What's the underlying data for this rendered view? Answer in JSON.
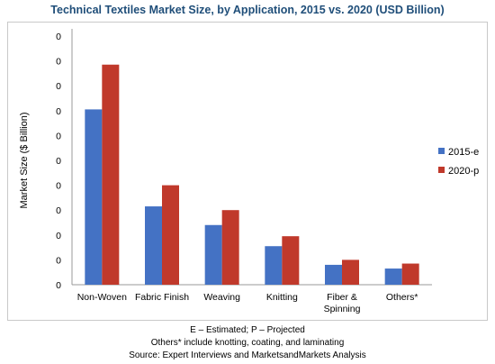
{
  "chart_data": {
    "type": "bar",
    "title": "Technical Textiles Market Size, by Application, 2015 vs. 2020 (USD Billion)",
    "ylabel": "Market Size ($ Billion)",
    "xlabel": "",
    "categories": [
      [
        "Non-Woven"
      ],
      [
        "Fabric Finish"
      ],
      [
        "Weaving"
      ],
      [
        "Knitting"
      ],
      [
        "Fiber &",
        "Spinning"
      ],
      [
        "Others*"
      ]
    ],
    "ytick_labels": [
      "0",
      "0",
      "0",
      "0",
      "0",
      "0",
      "0",
      "0",
      "0",
      "0",
      "0"
    ],
    "ylim": [
      0,
      100
    ],
    "grid": false,
    "legend_position": "right",
    "series": [
      {
        "name": "2015-e",
        "color": "#4472c4",
        "values": [
          70.5,
          31.5,
          24,
          15.5,
          8,
          6.5
        ]
      },
      {
        "name": "2020-p",
        "color": "#c0392b",
        "values": [
          88.5,
          40,
          30,
          19.5,
          10,
          8.5
        ]
      }
    ]
  },
  "footnotes": [
    "E – Estimated; P – Projected",
    "Others* include knotting, coating, and laminating",
    "Source: Expert Interviews and MarketsandMarkets Analysis"
  ]
}
